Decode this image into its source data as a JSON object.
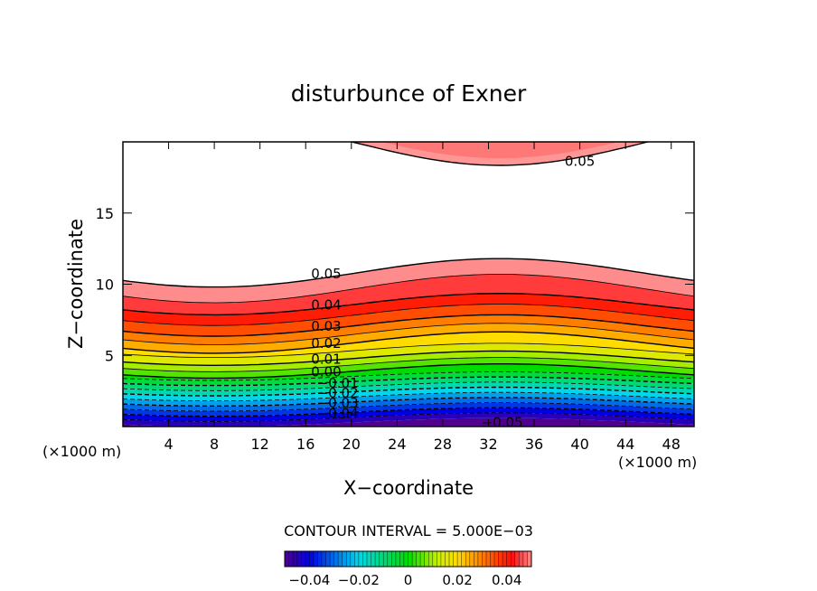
{
  "chart_data": {
    "type": "contour",
    "title": "disturbunce of Exner",
    "xlabel": "X−coordinate",
    "ylabel": "Z−coordinate",
    "x_unit_left": "(×1000 m)",
    "x_unit_right": "(×1000 m)",
    "xlim": [
      0,
      50
    ],
    "ylim": [
      0,
      20
    ],
    "x_ticks": [
      4,
      8,
      12,
      16,
      20,
      24,
      28,
      32,
      36,
      40,
      44,
      48
    ],
    "y_ticks": [
      5,
      10,
      15
    ],
    "x_tick_labels": [
      "4",
      "8",
      "12",
      "16",
      "20",
      "24",
      "28",
      "32",
      "36",
      "40",
      "44",
      "48"
    ],
    "y_tick_labels": [
      "5",
      "10",
      "15"
    ],
    "contour_interval_text": "CONTOUR INTERVAL = 5.000E−03",
    "contour_interval": 0.005,
    "levels": [
      -0.05,
      -0.045,
      -0.04,
      -0.035,
      -0.03,
      -0.025,
      -0.02,
      -0.015,
      -0.01,
      -0.005,
      0.0,
      0.005,
      0.01,
      0.015,
      0.02,
      0.025,
      0.03,
      0.035,
      0.04,
      0.045,
      0.05
    ],
    "contour_labels": [
      {
        "text": "0.05",
        "x": 40,
        "z": 18.7
      },
      {
        "text": "0.05",
        "x": 17.8,
        "z": 10.8
      },
      {
        "text": "0.04",
        "x": 17.8,
        "z": 8.6
      },
      {
        "text": "0.03",
        "x": 17.8,
        "z": 7.1
      },
      {
        "text": "0.02",
        "x": 17.8,
        "z": 5.9
      },
      {
        "text": "0.01",
        "x": 17.8,
        "z": 4.8
      },
      {
        "text": "0.00",
        "x": 17.8,
        "z": 3.9
      },
      {
        "text": "−0.01",
        "x": 18.8,
        "z": 3.1
      },
      {
        "text": "−0.02",
        "x": 18.8,
        "z": 2.4
      },
      {
        "text": "−0.03",
        "x": 18.8,
        "z": 1.7
      },
      {
        "text": "−0.04",
        "x": 18.8,
        "z": 1.0
      },
      {
        "text": "−0.05",
        "x": 33.2,
        "z": 0.35
      }
    ],
    "colorbar": {
      "range": [
        -0.05,
        0.05
      ],
      "tick_values": [
        -0.04,
        -0.02,
        0,
        0.02,
        0.04
      ],
      "tick_labels": [
        "−0.04",
        "−0.02",
        "0",
        "0.02",
        "0.04"
      ]
    }
  }
}
